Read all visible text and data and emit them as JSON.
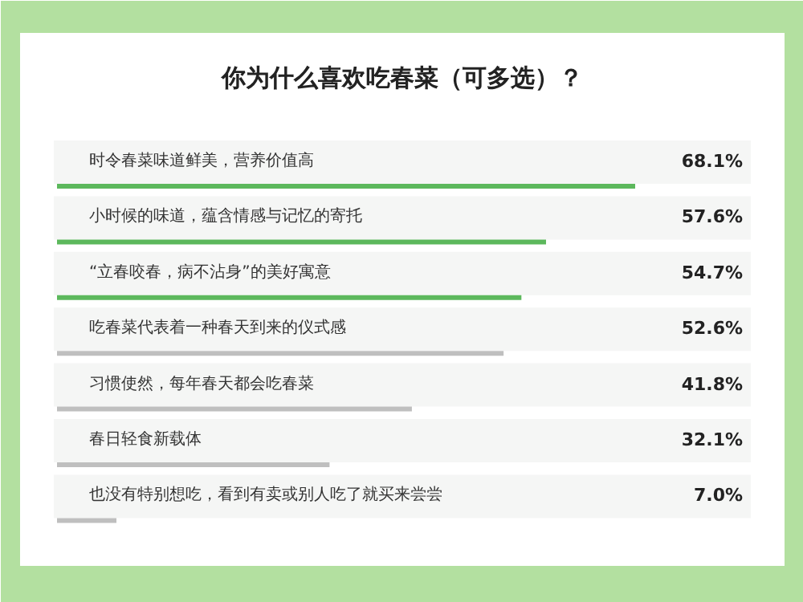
{
  "chart_data": {
    "type": "bar",
    "orientation": "horizontal",
    "data_labels": true,
    "title": "你为什么喜欢吃春菜（可多选）？",
    "categories": [
      "时令春菜味道鲜美，营养价值高",
      "小时候的味道，蕴含情感与记忆的寄托",
      "“立春咬春，病不沾身”的美好寓意",
      "吃春菜代表着一种春天到来的仪式感",
      "习惯使然，每年春天都会吃春菜",
      "春日轻食新载体",
      "也没有特别想吃，看到有卖或别人吃了就买来尝尝"
    ],
    "values": [
      68.1,
      57.6,
      54.7,
      52.6,
      41.8,
      32.1,
      7.0
    ],
    "value_labels": [
      "68.1%",
      "57.6%",
      "54.7%",
      "52.6%",
      "41.8%",
      "32.1%",
      "7.0%"
    ],
    "colors": [
      "#5cb85c",
      "#5cb85c",
      "#5cb85c",
      "#bfbfbf",
      "#bfbfbf",
      "#bfbfbf",
      "#bfbfbf"
    ],
    "grid": false
  }
}
